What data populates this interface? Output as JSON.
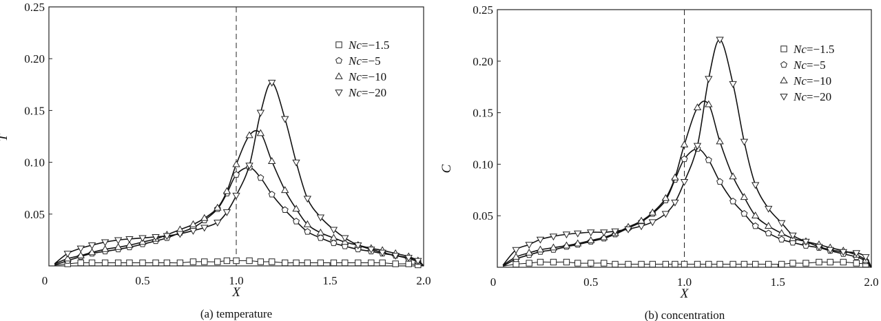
{
  "chart_data": [
    {
      "type": "line",
      "caption": "(a) temperature",
      "xlabel": "X",
      "ylabel": "T",
      "xlim": [
        0,
        2.0
      ],
      "ylim": [
        0,
        0.25
      ],
      "xticks": [
        "0",
        "0.5",
        "1.0",
        "1.5",
        "2.0"
      ],
      "yticks": [
        "0.05",
        "0.10",
        "0.15",
        "0.20",
        "0.25"
      ],
      "reference_line": {
        "x": 1.0,
        "style": "dashed"
      },
      "legend_position": "top-right",
      "x": [
        0.03,
        0.1,
        0.17,
        0.23,
        0.3,
        0.37,
        0.43,
        0.5,
        0.57,
        0.63,
        0.7,
        0.77,
        0.83,
        0.9,
        0.95,
        1.0,
        1.07,
        1.13,
        1.19,
        1.26,
        1.32,
        1.38,
        1.45,
        1.52,
        1.58,
        1.65,
        1.72,
        1.78,
        1.85,
        1.92,
        1.97,
        2.0
      ],
      "series": [
        {
          "name": "Nc=−1.5",
          "marker": "square",
          "values": [
            0.0005,
            0.002,
            0.003,
            0.003,
            0.003,
            0.003,
            0.003,
            0.003,
            0.003,
            0.003,
            0.003,
            0.004,
            0.004,
            0.004,
            0.005,
            0.005,
            0.005,
            0.004,
            0.004,
            0.003,
            0.003,
            0.003,
            0.003,
            0.003,
            0.003,
            0.003,
            0.003,
            0.003,
            0.002,
            0.002,
            0.001,
            0
          ]
        },
        {
          "name": "Nc=−5",
          "marker": "pentagon",
          "values": [
            0.001,
            0.005,
            0.009,
            0.012,
            0.014,
            0.016,
            0.018,
            0.021,
            0.024,
            0.027,
            0.032,
            0.037,
            0.044,
            0.055,
            0.07,
            0.088,
            0.095,
            0.085,
            0.069,
            0.054,
            0.043,
            0.033,
            0.027,
            0.022,
            0.019,
            0.016,
            0.014,
            0.012,
            0.01,
            0.007,
            0.004,
            0
          ]
        },
        {
          "name": "Nc=−10",
          "marker": "triangle-up",
          "values": [
            0.002,
            0.007,
            0.01,
            0.013,
            0.016,
            0.018,
            0.02,
            0.023,
            0.026,
            0.03,
            0.035,
            0.04,
            0.046,
            0.056,
            0.072,
            0.098,
            0.126,
            0.128,
            0.101,
            0.073,
            0.055,
            0.04,
            0.032,
            0.027,
            0.023,
            0.02,
            0.017,
            0.015,
            0.012,
            0.009,
            0.005,
            0
          ]
        },
        {
          "name": "Nc=−20",
          "marker": "triangle-down",
          "values": [
            0.002,
            0.012,
            0.017,
            0.02,
            0.023,
            0.025,
            0.026,
            0.027,
            0.028,
            0.029,
            0.031,
            0.034,
            0.037,
            0.042,
            0.052,
            0.068,
            0.097,
            0.148,
            0.177,
            0.142,
            0.1,
            0.065,
            0.047,
            0.035,
            0.027,
            0.02,
            0.016,
            0.013,
            0.01,
            0.008,
            0.005,
            0
          ]
        }
      ]
    },
    {
      "type": "line",
      "caption": "(b) concentration",
      "xlabel": "X",
      "ylabel": "C",
      "xlim": [
        0,
        2.0
      ],
      "ylim": [
        0,
        0.25
      ],
      "xticks": [
        "0",
        "0.5",
        "1.0",
        "1.5",
        "2.0"
      ],
      "yticks": [
        "0.05",
        "0.10",
        "0.15",
        "0.20",
        "0.25"
      ],
      "reference_line": {
        "x": 1.0,
        "style": "dashed"
      },
      "legend_position": "top-right",
      "x": [
        0.03,
        0.1,
        0.17,
        0.23,
        0.3,
        0.37,
        0.43,
        0.5,
        0.57,
        0.63,
        0.7,
        0.77,
        0.83,
        0.9,
        0.95,
        1.0,
        1.07,
        1.13,
        1.19,
        1.26,
        1.32,
        1.38,
        1.45,
        1.52,
        1.58,
        1.65,
        1.72,
        1.78,
        1.85,
        1.92,
        1.97,
        2.0
      ],
      "series": [
        {
          "name": "Nc=−1.5",
          "marker": "square",
          "values": [
            0.001,
            0.003,
            0.004,
            0.005,
            0.005,
            0.005,
            0.004,
            0.004,
            0.004,
            0.003,
            0.003,
            0.003,
            0.003,
            0.003,
            0.003,
            0.003,
            0.003,
            0.003,
            0.003,
            0.003,
            0.003,
            0.003,
            0.003,
            0.003,
            0.004,
            0.004,
            0.005,
            0.005,
            0.005,
            0.004,
            0.003,
            0
          ]
        },
        {
          "name": "Nc=−5",
          "marker": "pentagon",
          "values": [
            0.001,
            0.008,
            0.012,
            0.015,
            0.017,
            0.02,
            0.022,
            0.025,
            0.028,
            0.032,
            0.038,
            0.044,
            0.052,
            0.065,
            0.085,
            0.105,
            0.115,
            0.104,
            0.083,
            0.064,
            0.052,
            0.04,
            0.033,
            0.027,
            0.024,
            0.021,
            0.019,
            0.016,
            0.013,
            0.01,
            0.006,
            0
          ]
        },
        {
          "name": "Nc=−10",
          "marker": "triangle-up",
          "values": [
            0.002,
            0.01,
            0.014,
            0.017,
            0.019,
            0.021,
            0.023,
            0.026,
            0.029,
            0.033,
            0.039,
            0.045,
            0.053,
            0.067,
            0.087,
            0.119,
            0.155,
            0.158,
            0.122,
            0.088,
            0.068,
            0.05,
            0.04,
            0.033,
            0.028,
            0.025,
            0.022,
            0.019,
            0.016,
            0.012,
            0.007,
            0
          ]
        },
        {
          "name": "Nc=−20",
          "marker": "triangle-down",
          "values": [
            0.002,
            0.017,
            0.022,
            0.027,
            0.03,
            0.032,
            0.033,
            0.034,
            0.034,
            0.035,
            0.037,
            0.04,
            0.044,
            0.052,
            0.063,
            0.083,
            0.118,
            0.183,
            0.221,
            0.178,
            0.122,
            0.08,
            0.057,
            0.043,
            0.031,
            0.025,
            0.02,
            0.017,
            0.015,
            0.014,
            0.01,
            0
          ]
        }
      ]
    }
  ]
}
